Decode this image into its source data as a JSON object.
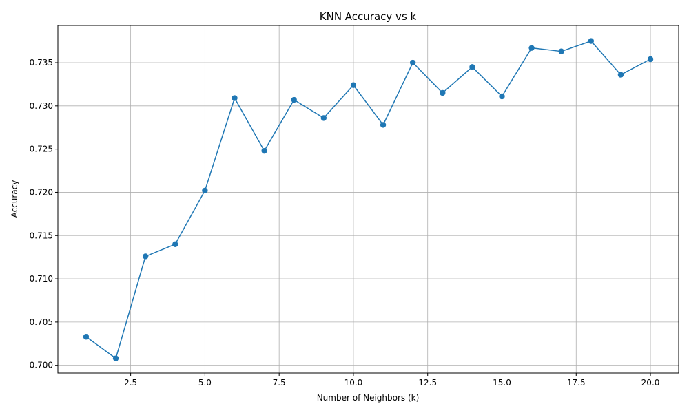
{
  "chart_data": {
    "type": "line",
    "title": "KNN Accuracy vs k",
    "xlabel": "Number of Neighbors (k)",
    "ylabel": "Accuracy",
    "xlim": [
      0.05,
      20.95
    ],
    "ylim": [
      0.6991,
      0.7393
    ],
    "x_ticks": [
      2.5,
      5.0,
      7.5,
      10.0,
      12.5,
      15.0,
      17.5,
      20.0
    ],
    "x_tick_labels": [
      "2.5",
      "5.0",
      "7.5",
      "10.0",
      "12.5",
      "15.0",
      "17.5",
      "20.0"
    ],
    "y_ticks": [
      0.7,
      0.705,
      0.71,
      0.715,
      0.72,
      0.725,
      0.73,
      0.735
    ],
    "y_tick_labels": [
      "0.700",
      "0.705",
      "0.710",
      "0.715",
      "0.720",
      "0.725",
      "0.730",
      "0.735"
    ],
    "grid": true,
    "marker": "circle",
    "series": [
      {
        "color": "#1f77b4",
        "x": [
          1,
          2,
          3,
          4,
          5,
          6,
          7,
          8,
          9,
          10,
          11,
          12,
          13,
          14,
          15,
          16,
          17,
          18,
          19,
          20
        ],
        "values": [
          0.7033,
          0.7008,
          0.7126,
          0.714,
          0.7202,
          0.7309,
          0.7248,
          0.7307,
          0.7286,
          0.7324,
          0.7278,
          0.735,
          0.7315,
          0.7345,
          0.7311,
          0.7367,
          0.7363,
          0.7375,
          0.7336,
          0.7354
        ]
      }
    ]
  }
}
